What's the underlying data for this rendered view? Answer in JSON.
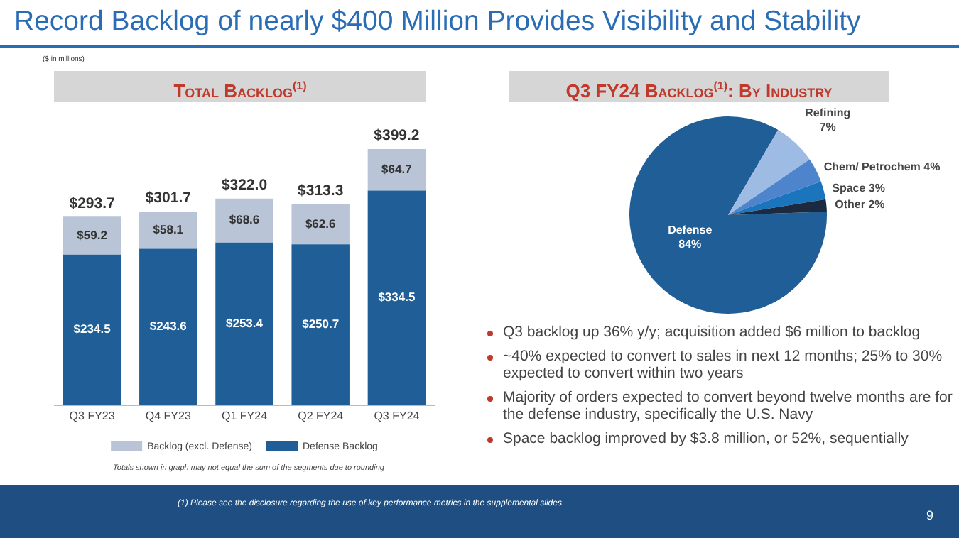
{
  "chart_data": [
    {
      "type": "bar",
      "title": "Total Backlog$^{(1)}$",
      "stacked": true,
      "legend": "bottom",
      "grid": false,
      "categories": [
        "Q3 FY23",
        "Q4 FY23",
        "Q1 FY24",
        "Q2 FY24",
        "Q3 FY24"
      ],
      "series": [
        {
          "name": "Defense Backlog",
          "color": "#1f5e96",
          "values": [
            234.5,
            243.6,
            253.4,
            250.7,
            334.5
          ],
          "value_labels": [
            "$234.5",
            "$243.6",
            "$253.4",
            "$250.7",
            "$334.5"
          ]
        },
        {
          "name": "Backlog (excl. Defense)",
          "color": "#b9c4d6",
          "values": [
            59.2,
            58.1,
            68.6,
            62.6,
            64.7
          ],
          "value_labels": [
            "$59.2",
            "$58.1",
            "$68.6",
            "$62.6",
            "$64.7"
          ]
        }
      ],
      "totals": [
        "$293.7",
        "$301.7",
        "$322.0",
        "$313.3",
        "$399.2"
      ],
      "annotations": [
        "Record Backlog of nearly $400 Million Provides Visibility and Stability",
        "($ in millions)",
        "Totals shown in graph may not equal the sum of the segments due to rounding"
      ]
    },
    {
      "type": "pie",
      "title": "Q3 FY24 Backlog$^{(1)}$: By Industry",
      "value_labels": [
        "84%",
        "7%",
        "4%",
        "3%",
        "2%"
      ],
      "categories": [
        "Defense",
        "Refining",
        "Chem/ Petrochem",
        "Space",
        "Other"
      ],
      "values": [
        84,
        7,
        4,
        3,
        2
      ],
      "colors": [
        "#1f5e96",
        "#9dbbe3",
        "#4d84cc",
        "#1b75bd",
        "#1b2a3e"
      ],
      "annotations": [
        "Q3 backlog up 36% y/y; acquisition added $6 million to backlog",
        "~40% expected to convert to sales in next 12 months; 25% to 30% expected to convert within two years",
        "Majority of orders expected to convert beyond twelve months are for the defense industry, specifically the U.S. Navy",
        "Space backlog improved by $3.8 million, or 52%, sequentially",
        "(1) Please see the disclosure regarding the use of key performance metrics in the supplemental slides.",
        "9"
      ]
    }
  ]
}
